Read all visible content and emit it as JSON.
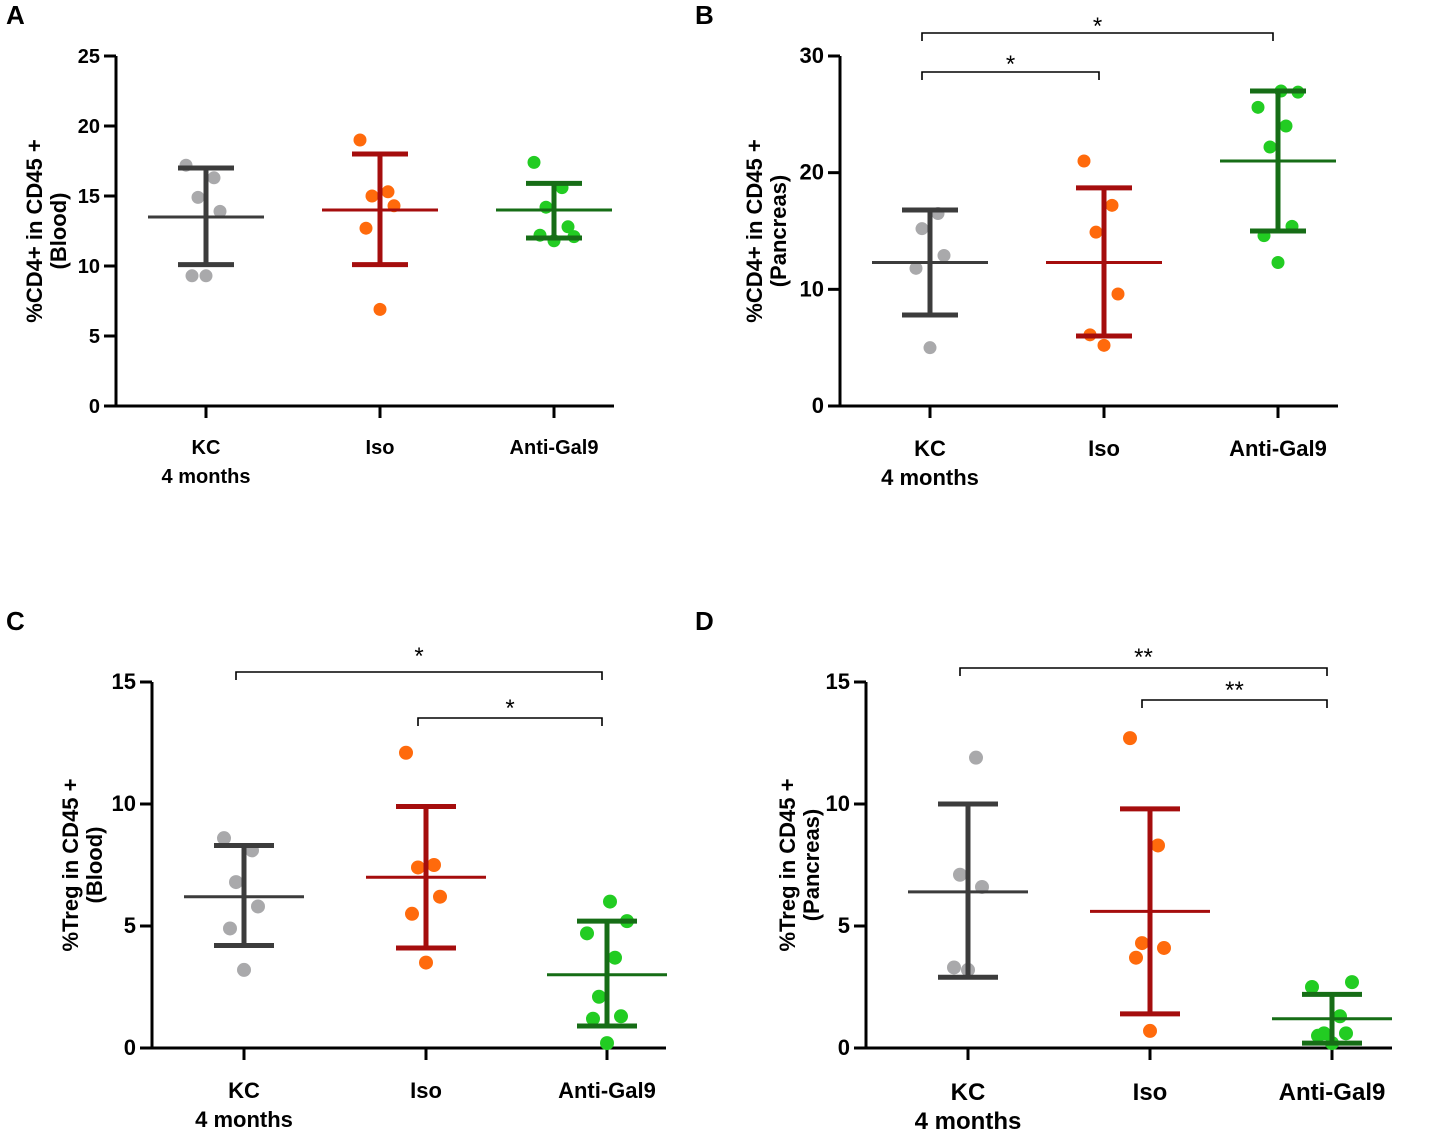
{
  "colors": {
    "axis": "#000000",
    "kc_point": "#a9a9ab",
    "kc_bar": "#3c3c3c",
    "iso_point": "#ff6a0c",
    "iso_bar": "#a50d0d",
    "gal9_point": "#22cc22",
    "gal9_bar": "#166d16"
  },
  "chart_data": [
    {
      "panel": "A",
      "type": "scatter",
      "ylabel_lines": [
        "%CD4+ in CD45 +",
        "(Blood)"
      ],
      "ylim": [
        0,
        25
      ],
      "yticks": [
        0,
        5,
        10,
        15,
        20,
        25
      ],
      "categories": [
        {
          "label_lines": [
            "KC",
            "4 months"
          ],
          "points": [
            9.3,
            9.3,
            13.9,
            14.9,
            16.3,
            17.2
          ],
          "mean": 13.5,
          "sd_low": 10.1,
          "sd_high": 17.0
        },
        {
          "label_lines": [
            "Iso"
          ],
          "points": [
            6.9,
            12.7,
            14.3,
            15.0,
            15.3,
            19.0
          ],
          "mean": 14.0,
          "sd_low": 10.1,
          "sd_high": 18.0
        },
        {
          "label_lines": [
            "Anti-Gal9"
          ],
          "points": [
            11.8,
            12.2,
            12.8,
            14.2,
            15.6,
            17.4,
            12.1
          ],
          "mean": 14.0,
          "sd_low": 12.0,
          "sd_high": 15.9
        }
      ],
      "significance": []
    },
    {
      "panel": "B",
      "type": "scatter",
      "ylabel_lines": [
        "%CD4+  in CD45 +",
        "(Pancreas)"
      ],
      "ylim": [
        0,
        30
      ],
      "yticks": [
        0,
        10,
        20,
        30
      ],
      "categories": [
        {
          "label_lines": [
            "KC",
            "4 months"
          ],
          "points": [
            5.0,
            11.8,
            12.9,
            15.2,
            16.5
          ],
          "mean": 12.3,
          "sd_low": 7.8,
          "sd_high": 16.8
        },
        {
          "label_lines": [
            "Iso"
          ],
          "points": [
            5.2,
            6.1,
            9.6,
            14.9,
            17.2,
            21.0
          ],
          "mean": 12.3,
          "sd_low": 6.0,
          "sd_high": 18.7
        },
        {
          "label_lines": [
            "Anti-Gal9"
          ],
          "points": [
            12.3,
            14.6,
            15.4,
            22.2,
            24.0,
            25.6,
            26.9,
            27.0
          ],
          "mean": 21.0,
          "sd_low": 15.0,
          "sd_high": 27.0
        }
      ],
      "significance": [
        {
          "from": 0,
          "to": 1,
          "label": "*"
        },
        {
          "from": 0,
          "to": 2,
          "label": "*"
        }
      ]
    },
    {
      "panel": "C",
      "type": "scatter",
      "ylabel_lines": [
        "%Treg in CD45 +",
        "(Blood)"
      ],
      "ylim": [
        0,
        15
      ],
      "yticks": [
        0,
        5,
        10,
        15
      ],
      "categories": [
        {
          "label_lines": [
            "KC",
            "4 months"
          ],
          "points": [
            3.2,
            4.9,
            5.8,
            6.8,
            8.1,
            8.6
          ],
          "mean": 6.2,
          "sd_low": 4.2,
          "sd_high": 8.3
        },
        {
          "label_lines": [
            "Iso"
          ],
          "points": [
            3.5,
            5.5,
            6.2,
            7.4,
            7.5,
            12.1
          ],
          "mean": 7.0,
          "sd_low": 4.1,
          "sd_high": 9.9
        },
        {
          "label_lines": [
            "Anti-Gal9"
          ],
          "points": [
            0.2,
            1.2,
            1.3,
            2.1,
            3.7,
            4.7,
            5.2,
            6.0
          ],
          "mean": 3.0,
          "sd_low": 0.9,
          "sd_high": 5.2
        }
      ],
      "significance": [
        {
          "from": 0,
          "to": 2,
          "label": "*"
        },
        {
          "from": 1,
          "to": 2,
          "label": "*"
        }
      ]
    },
    {
      "panel": "D",
      "type": "scatter",
      "ylabel_lines": [
        "%Treg in CD45 +",
        "(Pancreas)"
      ],
      "ylim": [
        0,
        15
      ],
      "yticks": [
        0,
        5,
        10,
        15
      ],
      "categories": [
        {
          "label_lines": [
            "KC",
            "4 months"
          ],
          "points": [
            3.2,
            3.3,
            6.6,
            7.1,
            11.9
          ],
          "mean": 6.4,
          "sd_low": 2.9,
          "sd_high": 10.0
        },
        {
          "label_lines": [
            "Iso"
          ],
          "points": [
            0.7,
            3.7,
            4.1,
            4.3,
            8.3,
            12.7
          ],
          "mean": 5.6,
          "sd_low": 1.4,
          "sd_high": 9.8
        },
        {
          "label_lines": [
            "Anti-Gal9"
          ],
          "points": [
            0.2,
            0.5,
            0.6,
            0.6,
            1.3,
            2.5,
            2.7
          ],
          "mean": 1.2,
          "sd_low": 0.2,
          "sd_high": 2.2
        }
      ],
      "significance": [
        {
          "from": 0,
          "to": 2,
          "label": "**"
        },
        {
          "from": 1,
          "to": 2,
          "label": "**"
        }
      ]
    }
  ]
}
